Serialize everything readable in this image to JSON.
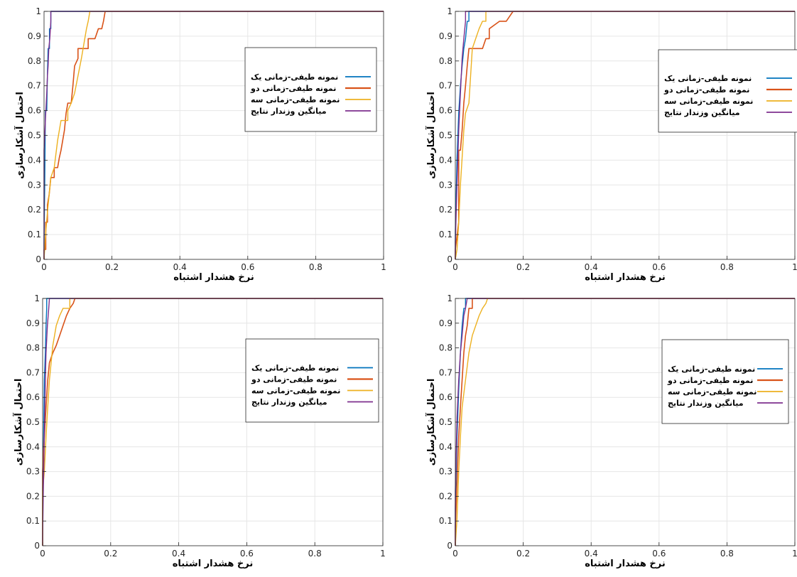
{
  "chart_data": [
    {
      "type": "line",
      "xlabel": "نرخ هشدار اشتباه",
      "ylabel": "احتمال آشکارسازی",
      "xlim": [
        0,
        1
      ],
      "ylim": [
        0,
        1
      ],
      "xticks": [
        "0",
        "0.2",
        "0.4",
        "0.6",
        "0.8",
        "1"
      ],
      "yticks": [
        "0",
        "0.1",
        "0.2",
        "0.3",
        "0.4",
        "0.5",
        "0.6",
        "0.7",
        "0.8",
        "0.9",
        "1"
      ],
      "grid": true,
      "legend_position": "upper-right",
      "series": [
        {
          "name": "نمونه طیفی-زمانی یک",
          "color": "#0072BD",
          "points": [
            [
              0,
              0
            ],
            [
              0,
              0.07
            ],
            [
              0.002,
              0.3
            ],
            [
              0.004,
              0.6
            ],
            [
              0.008,
              0.6
            ],
            [
              0.01,
              0.75
            ],
            [
              0.012,
              0.85
            ],
            [
              0.016,
              0.85
            ],
            [
              0.016,
              0.93
            ],
            [
              0.02,
              0.93
            ],
            [
              0.02,
              1
            ],
            [
              1,
              1
            ]
          ]
        },
        {
          "name": "نمونه طیفی-زمانی دو",
          "color": "#D95319",
          "points": [
            [
              0,
              0
            ],
            [
              0,
              0.04
            ],
            [
              0.005,
              0.04
            ],
            [
              0.005,
              0.15
            ],
            [
              0.01,
              0.15
            ],
            [
              0.01,
              0.22
            ],
            [
              0.015,
              0.26
            ],
            [
              0.02,
              0.33
            ],
            [
              0.03,
              0.33
            ],
            [
              0.03,
              0.37
            ],
            [
              0.04,
              0.37
            ],
            [
              0.045,
              0.41
            ],
            [
              0.05,
              0.44
            ],
            [
              0.055,
              0.48
            ],
            [
              0.06,
              0.52
            ],
            [
              0.065,
              0.59
            ],
            [
              0.07,
              0.63
            ],
            [
              0.08,
              0.63
            ],
            [
              0.085,
              0.7
            ],
            [
              0.09,
              0.78
            ],
            [
              0.1,
              0.81
            ],
            [
              0.1,
              0.85
            ],
            [
              0.13,
              0.85
            ],
            [
              0.13,
              0.89
            ],
            [
              0.15,
              0.89
            ],
            [
              0.16,
              0.93
            ],
            [
              0.17,
              0.93
            ],
            [
              0.175,
              0.96
            ],
            [
              0.18,
              1
            ],
            [
              1,
              1
            ]
          ]
        },
        {
          "name": "نمونه طیفی-زمانی سه",
          "color": "#EDB120",
          "points": [
            [
              0,
              0
            ],
            [
              0.005,
              0.11
            ],
            [
              0.01,
              0.19
            ],
            [
              0.015,
              0.26
            ],
            [
              0.02,
              0.33
            ],
            [
              0.03,
              0.37
            ],
            [
              0.04,
              0.48
            ],
            [
              0.045,
              0.52
            ],
            [
              0.05,
              0.56
            ],
            [
              0.07,
              0.56
            ],
            [
              0.07,
              0.6
            ],
            [
              0.08,
              0.63
            ],
            [
              0.09,
              0.67
            ],
            [
              0.1,
              0.74
            ],
            [
              0.11,
              0.81
            ],
            [
              0.115,
              0.85
            ],
            [
              0.12,
              0.89
            ],
            [
              0.125,
              0.93
            ],
            [
              0.13,
              0.96
            ],
            [
              0.135,
              1
            ],
            [
              1,
              1
            ]
          ]
        },
        {
          "name": "میانگین وزندار نتایج",
          "color": "#7E2F8E",
          "points": [
            [
              0,
              0
            ],
            [
              0,
              0.44
            ],
            [
              0.005,
              0.59
            ],
            [
              0.008,
              0.67
            ],
            [
              0.01,
              0.74
            ],
            [
              0.012,
              0.78
            ],
            [
              0.014,
              0.85
            ],
            [
              0.017,
              0.89
            ],
            [
              0.02,
              0.96
            ],
            [
              0.02,
              1
            ],
            [
              1,
              1
            ]
          ]
        }
      ]
    },
    {
      "type": "line",
      "xlabel": "نرخ هشدار اشتباه",
      "ylabel": "احتمال آشکارسازی",
      "xlim": [
        0,
        1
      ],
      "ylim": [
        0,
        1
      ],
      "xticks": [
        "0",
        "0.2",
        "0.4",
        "0.6",
        "0.8",
        "1"
      ],
      "yticks": [
        "0",
        "0.1",
        "0.2",
        "0.3",
        "0.4",
        "0.5",
        "0.6",
        "0.7",
        "0.8",
        "0.9",
        "1"
      ],
      "grid": true,
      "legend_position": "upper-right",
      "series": [
        {
          "name": "نمونه طیفی-زمانی یک",
          "color": "#0072BD",
          "points": [
            [
              0,
              0
            ],
            [
              0,
              0.11
            ],
            [
              0.005,
              0.41
            ],
            [
              0.01,
              0.59
            ],
            [
              0.015,
              0.7
            ],
            [
              0.02,
              0.78
            ],
            [
              0.025,
              0.85
            ],
            [
              0.03,
              0.89
            ],
            [
              0.035,
              0.96
            ],
            [
              0.04,
              0.96
            ],
            [
              0.04,
              1
            ],
            [
              1,
              1
            ]
          ]
        },
        {
          "name": "نمونه طیفی-زمانی دو",
          "color": "#D95319",
          "points": [
            [
              0,
              0
            ],
            [
              0,
              0.04
            ],
            [
              0.01,
              0.15
            ],
            [
              0.01,
              0.44
            ],
            [
              0.015,
              0.44
            ],
            [
              0.02,
              0.52
            ],
            [
              0.025,
              0.63
            ],
            [
              0.03,
              0.7
            ],
            [
              0.035,
              0.78
            ],
            [
              0.04,
              0.85
            ],
            [
              0.08,
              0.85
            ],
            [
              0.09,
              0.89
            ],
            [
              0.1,
              0.89
            ],
            [
              0.1,
              0.93
            ],
            [
              0.13,
              0.96
            ],
            [
              0.15,
              0.96
            ],
            [
              0.16,
              0.98
            ],
            [
              0.17,
              1
            ],
            [
              1,
              1
            ]
          ]
        },
        {
          "name": "نمونه طیفی-زمانی سه",
          "color": "#EDB120",
          "points": [
            [
              0,
              0
            ],
            [
              0.005,
              0.04
            ],
            [
              0.01,
              0.15
            ],
            [
              0.015,
              0.3
            ],
            [
              0.02,
              0.41
            ],
            [
              0.025,
              0.52
            ],
            [
              0.03,
              0.59
            ],
            [
              0.04,
              0.63
            ],
            [
              0.045,
              0.74
            ],
            [
              0.05,
              0.85
            ],
            [
              0.06,
              0.89
            ],
            [
              0.07,
              0.93
            ],
            [
              0.08,
              0.96
            ],
            [
              0.09,
              0.96
            ],
            [
              0.09,
              1
            ],
            [
              1,
              1
            ]
          ]
        },
        {
          "name": "میانگین وزندار نتایج",
          "color": "#7E2F8E",
          "points": [
            [
              0,
              0
            ],
            [
              0,
              0.07
            ],
            [
              0.005,
              0.3
            ],
            [
              0.01,
              0.52
            ],
            [
              0.015,
              0.67
            ],
            [
              0.02,
              0.81
            ],
            [
              0.025,
              0.89
            ],
            [
              0.03,
              0.96
            ],
            [
              0.03,
              1
            ],
            [
              1,
              1
            ]
          ]
        }
      ]
    },
    {
      "type": "line",
      "xlabel": "نرخ هشدار اشتباه",
      "ylabel": "احتمال آشکارسازی",
      "xlim": [
        0,
        1
      ],
      "ylim": [
        0,
        1
      ],
      "xticks": [
        "0",
        "0.2",
        "0.4",
        "0.6",
        "0.8",
        "1"
      ],
      "yticks": [
        "0",
        "0.1",
        "0.2",
        "0.3",
        "0.4",
        "0.5",
        "0.6",
        "0.7",
        "0.8",
        "0.9",
        "1"
      ],
      "grid": true,
      "legend_position": "right",
      "series": [
        {
          "name": "نمونه طیفی-زمانی یک",
          "color": "#0072BD",
          "points": [
            [
              0,
              0
            ],
            [
              0,
              0.22
            ],
            [
              0.003,
              0.44
            ],
            [
              0.005,
              0.67
            ],
            [
              0.008,
              0.78
            ],
            [
              0.01,
              0.89
            ],
            [
              0.012,
              0.96
            ],
            [
              0.012,
              1
            ],
            [
              1,
              1
            ]
          ]
        },
        {
          "name": "نمونه طیفی-زمانی دو",
          "color": "#D95319",
          "points": [
            [
              0,
              0
            ],
            [
              0,
              0.3
            ],
            [
              0.005,
              0.44
            ],
            [
              0.01,
              0.56
            ],
            [
              0.015,
              0.67
            ],
            [
              0.02,
              0.74
            ],
            [
              0.03,
              0.78
            ],
            [
              0.04,
              0.81
            ],
            [
              0.05,
              0.85
            ],
            [
              0.06,
              0.89
            ],
            [
              0.07,
              0.93
            ],
            [
              0.08,
              0.96
            ],
            [
              0.09,
              0.98
            ],
            [
              0.095,
              1
            ],
            [
              1,
              1
            ]
          ]
        },
        {
          "name": "نمونه طیفی-زمانی سه",
          "color": "#EDB120",
          "points": [
            [
              0,
              0
            ],
            [
              0,
              0.22
            ],
            [
              0.005,
              0.3
            ],
            [
              0.01,
              0.44
            ],
            [
              0.015,
              0.56
            ],
            [
              0.02,
              0.67
            ],
            [
              0.025,
              0.74
            ],
            [
              0.03,
              0.81
            ],
            [
              0.035,
              0.85
            ],
            [
              0.04,
              0.89
            ],
            [
              0.05,
              0.93
            ],
            [
              0.06,
              0.96
            ],
            [
              0.08,
              0.96
            ],
            [
              0.08,
              1
            ],
            [
              1,
              1
            ]
          ]
        },
        {
          "name": "میانگین وزندار نتایج",
          "color": "#7E2F8E",
          "points": [
            [
              0,
              0
            ],
            [
              0,
              0.04
            ],
            [
              0.002,
              0.22
            ],
            [
              0.005,
              0.44
            ],
            [
              0.008,
              0.67
            ],
            [
              0.01,
              0.78
            ],
            [
              0.014,
              0.89
            ],
            [
              0.018,
              0.96
            ],
            [
              0.02,
              1
            ],
            [
              1,
              1
            ]
          ]
        }
      ]
    },
    {
      "type": "line",
      "xlabel": "نرخ هشدار اشتباه",
      "ylabel": "احتمال آشکارسازی",
      "xlim": [
        0,
        1
      ],
      "ylim": [
        0,
        1
      ],
      "xticks": [
        "0",
        "0.2",
        "0.4",
        "0.6",
        "0.8",
        "1"
      ],
      "yticks": [
        "0",
        "0.1",
        "0.2",
        "0.3",
        "0.4",
        "0.5",
        "0.6",
        "0.7",
        "0.8",
        "0.9",
        "1"
      ],
      "grid": true,
      "legend_position": "right",
      "series": [
        {
          "name": "نمونه طیفی-زمانی یک",
          "color": "#0072BD",
          "points": [
            [
              0,
              0
            ],
            [
              0,
              0.15
            ],
            [
              0.005,
              0.44
            ],
            [
              0.01,
              0.63
            ],
            [
              0.015,
              0.78
            ],
            [
              0.02,
              0.89
            ],
            [
              0.025,
              0.96
            ],
            [
              0.03,
              0.96
            ],
            [
              0.03,
              1
            ],
            [
              1,
              1
            ]
          ]
        },
        {
          "name": "نمونه طیفی-زمانی دو",
          "color": "#D95319",
          "points": [
            [
              0,
              0
            ],
            [
              0,
              0.07
            ],
            [
              0.005,
              0.26
            ],
            [
              0.01,
              0.44
            ],
            [
              0.015,
              0.56
            ],
            [
              0.02,
              0.67
            ],
            [
              0.025,
              0.78
            ],
            [
              0.03,
              0.85
            ],
            [
              0.035,
              0.89
            ],
            [
              0.04,
              0.96
            ],
            [
              0.05,
              0.96
            ],
            [
              0.05,
              1
            ],
            [
              1,
              1
            ]
          ]
        },
        {
          "name": "نمونه طیفی-زمانی سه",
          "color": "#EDB120",
          "points": [
            [
              0,
              0
            ],
            [
              0.005,
              0.11
            ],
            [
              0.01,
              0.3
            ],
            [
              0.015,
              0.44
            ],
            [
              0.02,
              0.56
            ],
            [
              0.03,
              0.67
            ],
            [
              0.04,
              0.78
            ],
            [
              0.05,
              0.85
            ],
            [
              0.06,
              0.89
            ],
            [
              0.07,
              0.93
            ],
            [
              0.08,
              0.96
            ],
            [
              0.09,
              0.98
            ],
            [
              0.095,
              1
            ],
            [
              1,
              1
            ]
          ]
        },
        {
          "name": "میانگین وزندار نتایج",
          "color": "#7E2F8E",
          "points": [
            [
              0,
              0
            ],
            [
              0,
              0.22
            ],
            [
              0.005,
              0.52
            ],
            [
              0.01,
              0.67
            ],
            [
              0.015,
              0.78
            ],
            [
              0.02,
              0.85
            ],
            [
              0.025,
              0.93
            ],
            [
              0.03,
              0.96
            ],
            [
              0.035,
              1
            ],
            [
              1,
              1
            ]
          ]
        }
      ]
    }
  ]
}
